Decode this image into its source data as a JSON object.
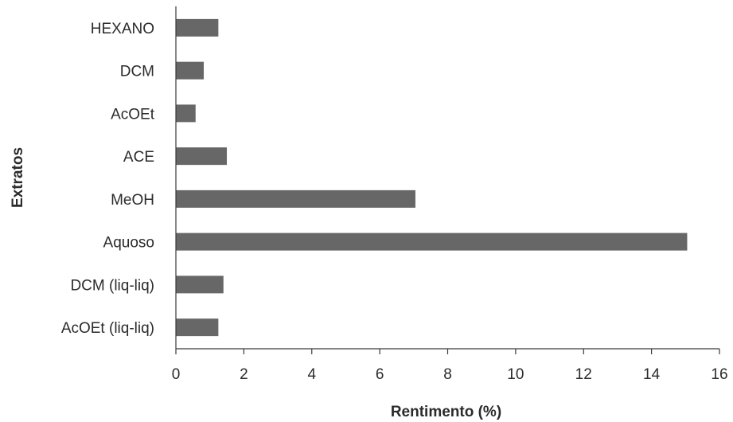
{
  "chart_data": {
    "type": "bar",
    "orientation": "horizontal",
    "categories": [
      "HEXANO",
      "DCM",
      "AcOEt",
      "ACE",
      "MeOH",
      "Aquoso",
      "DCM (liq-liq)",
      "AcOEt (liq-liq)"
    ],
    "values": [
      1.25,
      0.82,
      0.58,
      1.5,
      7.05,
      15.05,
      1.4,
      1.25
    ],
    "xlabel": "Rentimento (%)",
    "ylabel": "Extratos",
    "xlim": [
      0,
      16
    ],
    "xticks": [
      "0",
      "2",
      "4",
      "6",
      "8",
      "10",
      "12",
      "14",
      "16"
    ],
    "grid": false,
    "bar_color": "#676767"
  }
}
